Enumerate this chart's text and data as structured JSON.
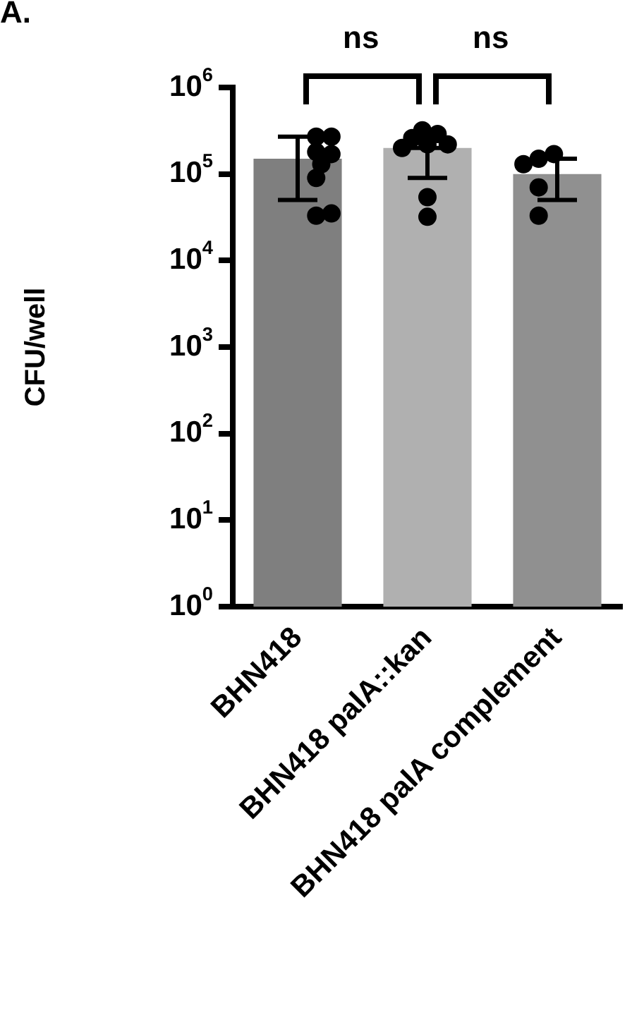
{
  "chart_data": {
    "type": "bar",
    "ylabel": "CFU/well",
    "categories": [
      "BHN418",
      "BHN418 palA::kan",
      "BHN418 palA complement"
    ],
    "series": [
      {
        "type": "bar",
        "colors": [
          "#7f7f7f",
          "#b0b0b0",
          "#909090"
        ],
        "values": [
          150000,
          200000,
          100000
        ],
        "errors": [
          [
            50000,
            270000
          ],
          [
            90000,
            200000
          ],
          [
            50000,
            150000
          ]
        ]
      },
      {
        "type": "scatter",
        "color": "#000000",
        "x": [
          "BHN418",
          "BHN418",
          "BHN418",
          "BHN418",
          "BHN418",
          "BHN418",
          "BHN418",
          "BHN418",
          "BHN418 palA::kan",
          "BHN418 palA::kan",
          "BHN418 palA::kan",
          "BHN418 palA::kan",
          "BHN418 palA::kan",
          "BHN418 palA::kan",
          "BHN418 palA::kan",
          "BHN418 palA::kan",
          "BHN418 palA complement",
          "BHN418 palA complement",
          "BHN418 palA complement",
          "BHN418 palA complement",
          "BHN418 palA complement"
        ],
        "values": [
          270000,
          270000,
          180000,
          170000,
          130000,
          90000,
          33000,
          35000,
          220000,
          290000,
          320000,
          260000,
          220000,
          200000,
          54000,
          32000,
          150000,
          170000,
          130000,
          70000,
          33000
        ]
      }
    ],
    "log": "y",
    "ylim": [
      1,
      1000000
    ],
    "yticks": [
      {
        "value": 1,
        "label": "10$^{0}$"
      },
      {
        "value": 10,
        "label": "10$^{1}$"
      },
      {
        "value": 100,
        "label": "10$^{2}$"
      },
      {
        "value": 1000,
        "label": "10$^{3}$"
      },
      {
        "value": 10000,
        "label": "10$^{4}$"
      },
      {
        "value": 100000,
        "label": "10$^{5}$"
      },
      {
        "value": 1000000,
        "label": "10$^{6}$"
      }
    ],
    "grid": false,
    "legend": false,
    "marker": "circle",
    "annotations": [
      "A.",
      "ns",
      "ns"
    ]
  }
}
